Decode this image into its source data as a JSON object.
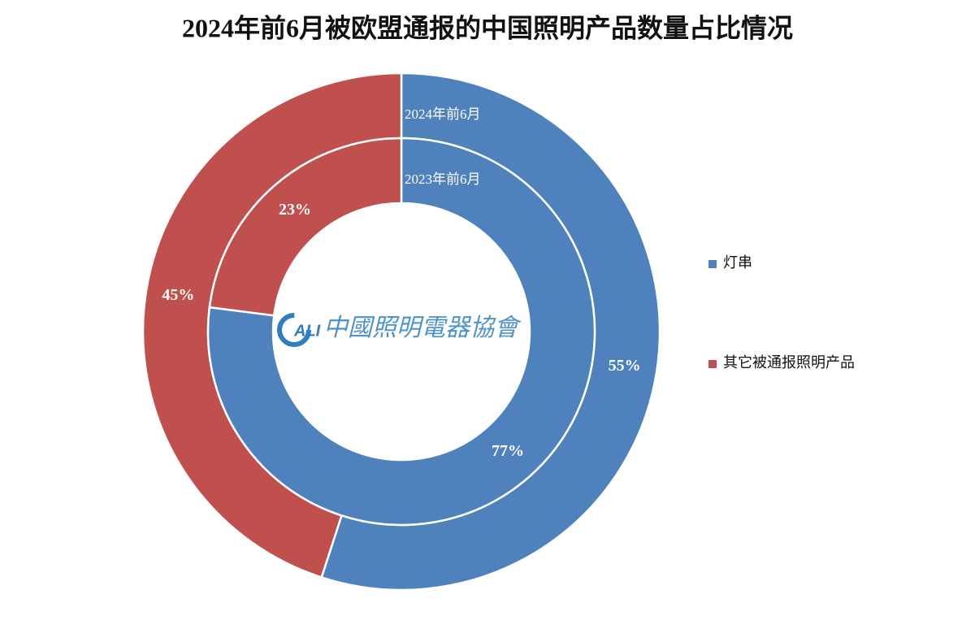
{
  "chart_data": {
    "type": "donut",
    "title": "2024年前6月被欧盟通报的中国照明产品数量占比情况",
    "categories": [
      "灯串",
      "其它被通报照明产品"
    ],
    "colors": [
      "#4f81bd",
      "#c0504d"
    ],
    "rings": [
      {
        "name": "2024年前6月",
        "values": [
          55,
          45
        ],
        "value_labels": [
          "55%",
          "45%"
        ]
      },
      {
        "name": "2023年前6月",
        "values": [
          77,
          23
        ],
        "value_labels": [
          "77%",
          "23%"
        ]
      }
    ],
    "legend": "right",
    "watermark": {
      "logo": "ALI",
      "text": "中國照明電器協會"
    }
  }
}
